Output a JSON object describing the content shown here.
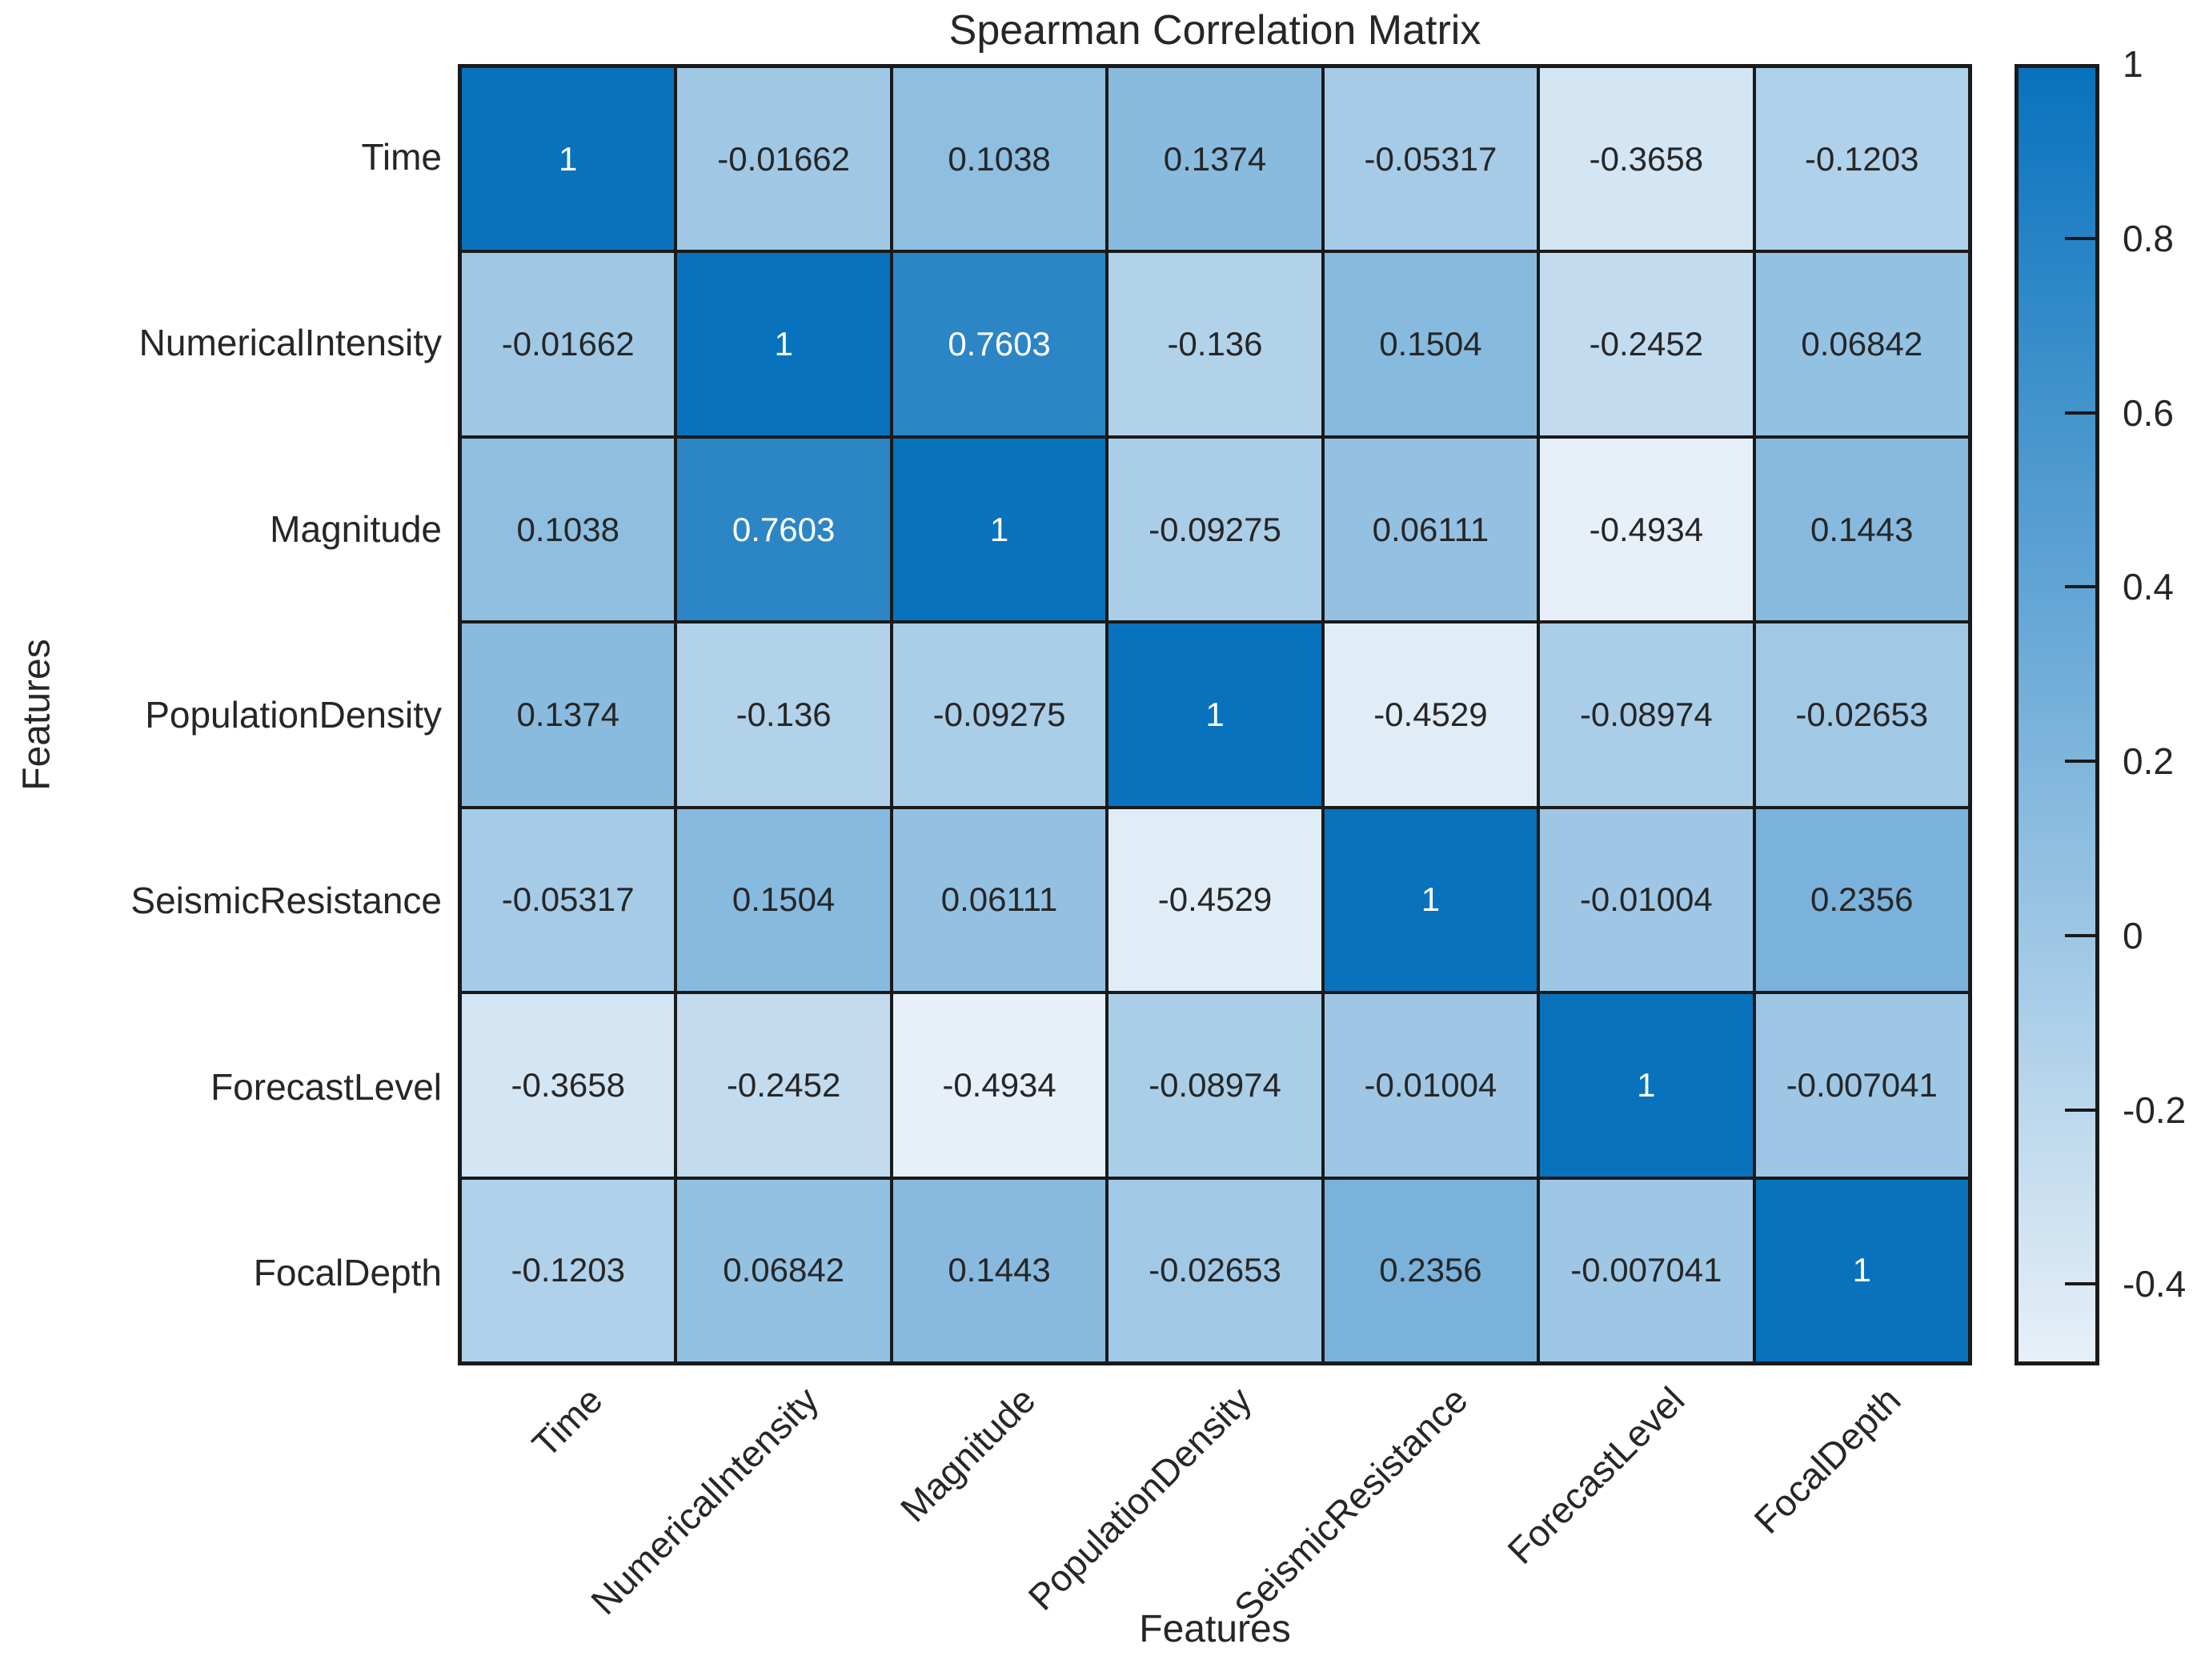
{
  "title": "Spearman Correlation Matrix",
  "x_axis_title": "Features",
  "y_axis_title": "Features",
  "chart_data": {
    "type": "heatmap",
    "title": "Spearman Correlation Matrix",
    "xlabel": "Features",
    "ylabel": "Features",
    "categories": [
      "Time",
      "NumericalIntensity",
      "Magnitude",
      "PopulationDensity",
      "SeismicResistance",
      "ForecastLevel",
      "FocalDepth"
    ],
    "matrix": [
      [
        1,
        -0.01662,
        0.1038,
        0.1374,
        -0.05317,
        -0.3658,
        -0.1203
      ],
      [
        -0.01662,
        1,
        0.7603,
        -0.136,
        0.1504,
        -0.2452,
        0.06842
      ],
      [
        0.1038,
        0.7603,
        1,
        -0.09275,
        0.06111,
        -0.4934,
        0.1443
      ],
      [
        0.1374,
        -0.136,
        -0.09275,
        1,
        -0.4529,
        -0.08974,
        -0.02653
      ],
      [
        -0.05317,
        0.1504,
        0.06111,
        -0.4529,
        1,
        -0.01004,
        0.2356
      ],
      [
        -0.3658,
        -0.2452,
        -0.4934,
        -0.08974,
        -0.01004,
        1,
        -0.007041
      ],
      [
        -0.1203,
        0.06842,
        0.1443,
        -0.02653,
        0.2356,
        -0.007041,
        1
      ]
    ],
    "colorbar": {
      "position": "right",
      "vmin": -0.4934,
      "vmax": 1,
      "tick_labels": [
        "1",
        "0.8",
        "0.6",
        "0.4",
        "0.2",
        "0",
        "-0.2",
        "-0.4"
      ],
      "tick_values": [
        1,
        0.8,
        0.6,
        0.4,
        0.2,
        0,
        -0.2,
        -0.4
      ],
      "color_min": "#E7F0F8",
      "color_max": "#0872BD"
    },
    "cell_border_color": "#1a1a1a",
    "grid": "on"
  }
}
